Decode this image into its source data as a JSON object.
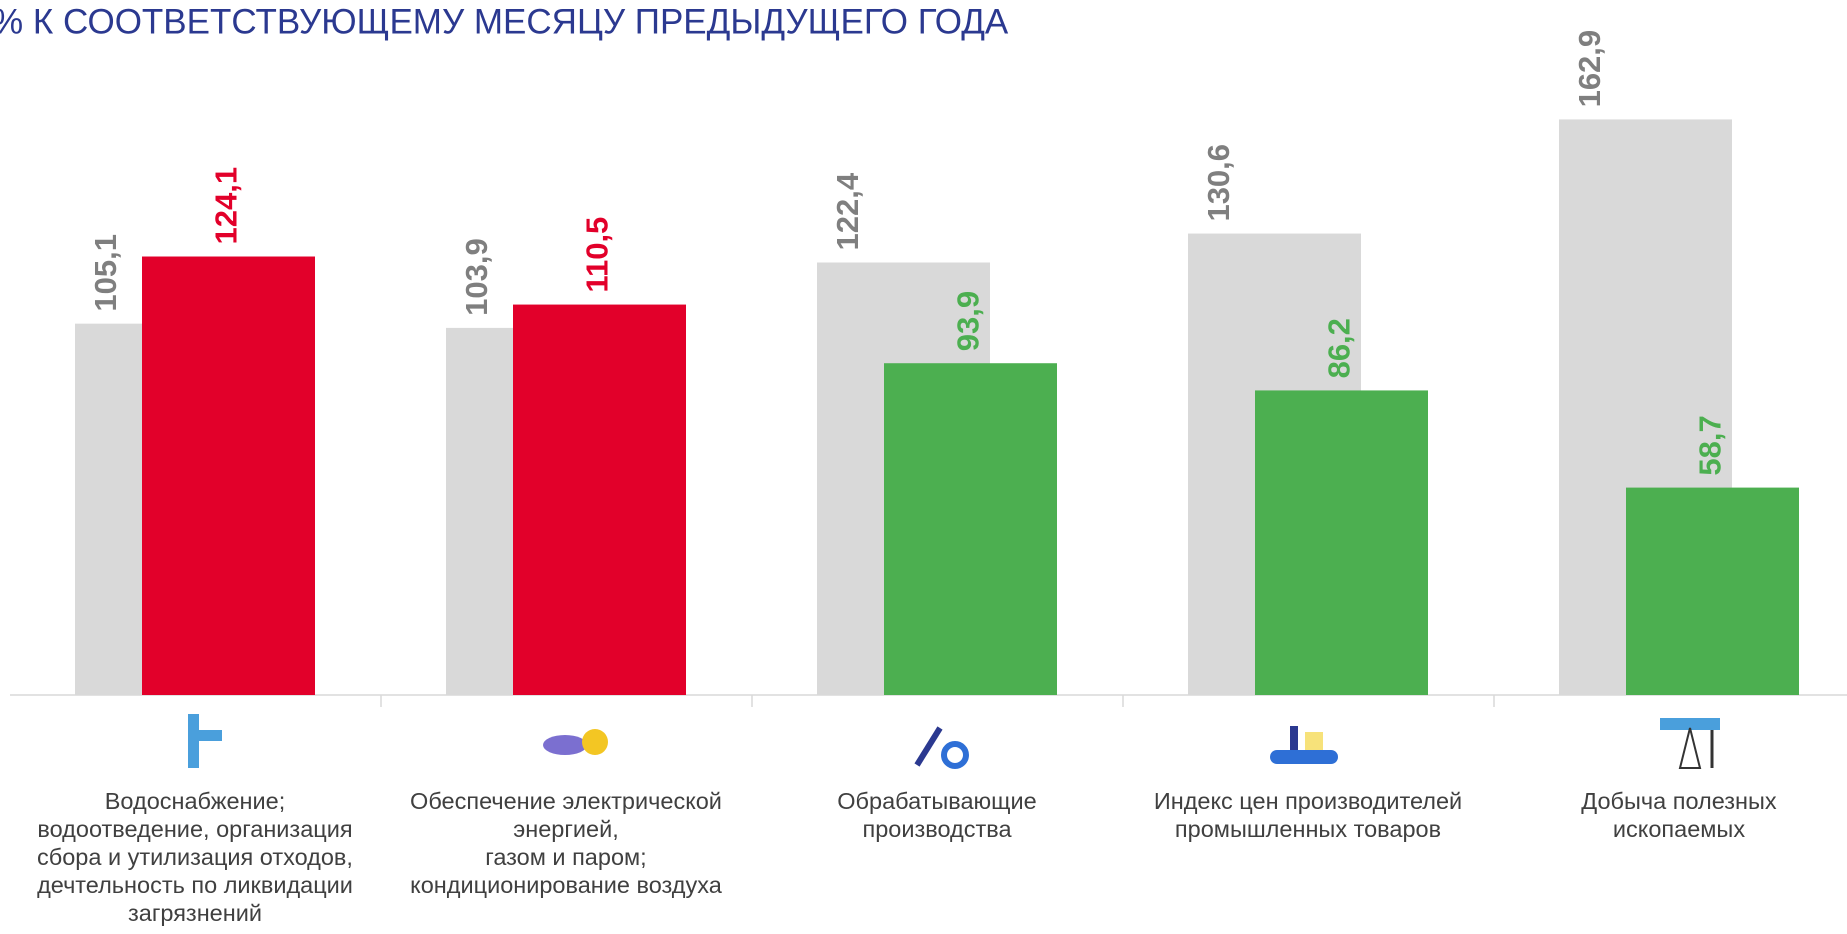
{
  "chart_data": {
    "type": "bar",
    "title": "% К СООТВЕТСТВУЮЩЕМУ МЕСЯЦУ ПРЕДЫДУЩЕГО ГОДА",
    "categories": [
      "Водоснабжение;\nводоотведение, организация\nсбора и утилизация отходов,\nдечтельность по ликвидации\nзагрязнений",
      "Обеспечение электрической\nэнергией,\nгазом и паром;\nкондиционирование воздуха",
      "Обрабатывающие\nпроизводства",
      "Индекс цен производителей\nпромышленных товаров",
      "Добыча полезных\nископаемых"
    ],
    "series": [
      {
        "color": "#d9d9d9",
        "label_color": "#7f7f7f",
        "values": [
          105.1,
          103.9,
          122.4,
          130.6,
          162.9
        ],
        "value_labels": [
          "105,1",
          "103,9",
          "122,4",
          "130,6",
          "162,9"
        ]
      },
      {
        "colors": [
          "#e2002a",
          "#e2002a",
          "#4caf50",
          "#4caf50",
          "#4caf50"
        ],
        "values": [
          124.1,
          110.5,
          93.9,
          86.2,
          58.7
        ],
        "value_labels": [
          "124,1",
          "110,5",
          "93,9",
          "86,2",
          "58,7"
        ]
      }
    ],
    "ylim": [
      0,
      180
    ]
  }
}
